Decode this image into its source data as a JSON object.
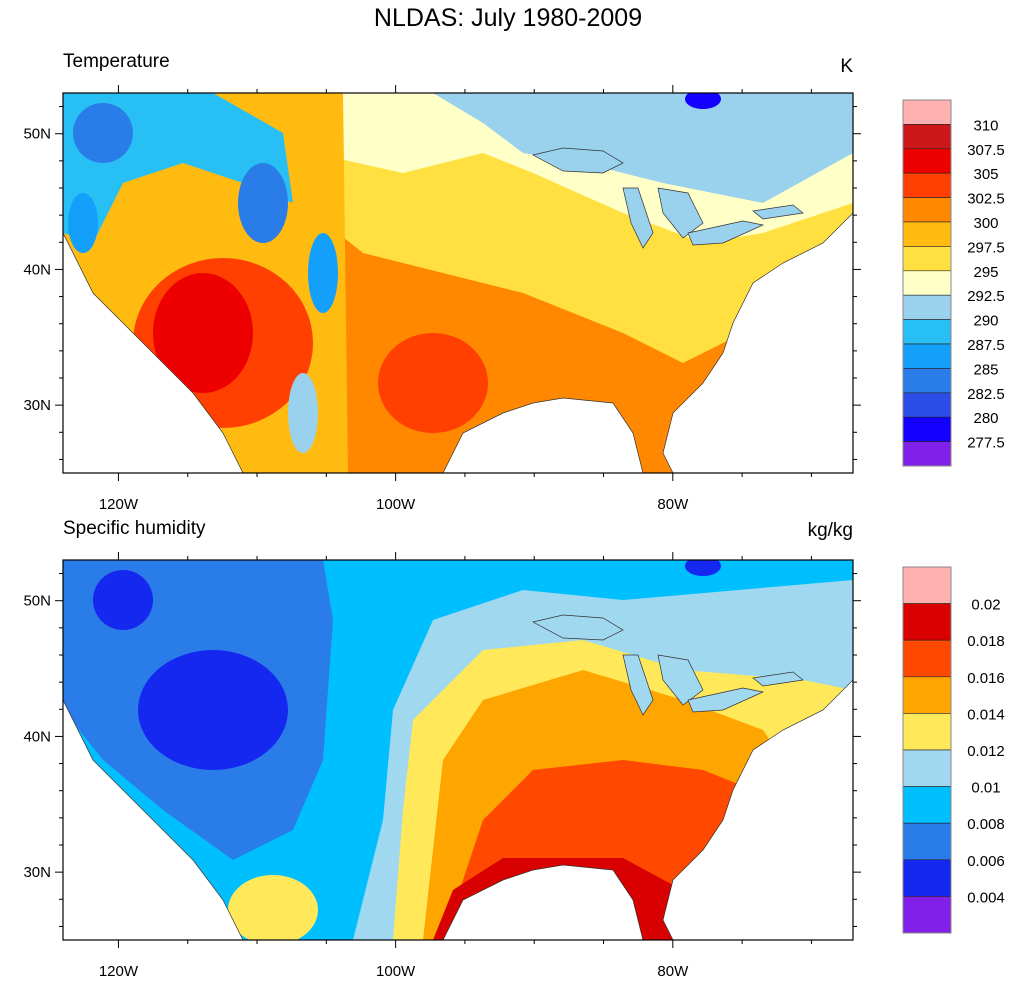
{
  "title": "NLDAS: July 1980-2009",
  "chart_data": [
    {
      "type": "heatmap",
      "subtype": "filled-contour map",
      "title": "Temperature",
      "units": "K",
      "lon_range": [
        -124,
        -67
      ],
      "lat_range": [
        25,
        53
      ],
      "x_ticks": [
        {
          "value": -120,
          "label": "120W"
        },
        {
          "value": -100,
          "label": "100W"
        },
        {
          "value": -80,
          "label": "80W"
        }
      ],
      "y_ticks": [
        {
          "value": 50,
          "label": "50N"
        },
        {
          "value": 40,
          "label": "40N"
        },
        {
          "value": 30,
          "label": "30N"
        }
      ],
      "colorbar": {
        "levels": [
          "310",
          "307.5",
          "305",
          "302.5",
          "300",
          "297.5",
          "295",
          "292.5",
          "290",
          "287.5",
          "285",
          "282.5",
          "280",
          "277.5"
        ],
        "colors": [
          "#ffb0b0",
          "#cc1818",
          "#ee0000",
          "#ff4000",
          "#ff8800",
          "#ffbb10",
          "#ffe040",
          "#ffffc8",
          "#9ad2ee",
          "#28c0f4",
          "#14a0fa",
          "#2a7de8",
          "#2a4de8",
          "#1400ff",
          "#8020e8"
        ]
      }
    },
    {
      "type": "heatmap",
      "subtype": "filled-contour map",
      "title": "Specific humidity",
      "units": "kg/kg",
      "lon_range": [
        -124,
        -67
      ],
      "lat_range": [
        25,
        53
      ],
      "x_ticks": [
        {
          "value": -120,
          "label": "120W"
        },
        {
          "value": -100,
          "label": "100W"
        },
        {
          "value": -80,
          "label": "80W"
        }
      ],
      "y_ticks": [
        {
          "value": 50,
          "label": "50N"
        },
        {
          "value": 40,
          "label": "40N"
        },
        {
          "value": 30,
          "label": "30N"
        }
      ],
      "colorbar": {
        "levels": [
          "0.02",
          "0.018",
          "0.016",
          "0.014",
          "0.012",
          "0.01",
          "0.008",
          "0.006",
          "0.004"
        ],
        "colors": [
          "#ffb0b0",
          "#d80000",
          "#ff4800",
          "#ffa500",
          "#ffe85a",
          "#a0d8f0",
          "#00bfff",
          "#2a7de8",
          "#1428f0",
          "#8020e8"
        ]
      }
    }
  ]
}
